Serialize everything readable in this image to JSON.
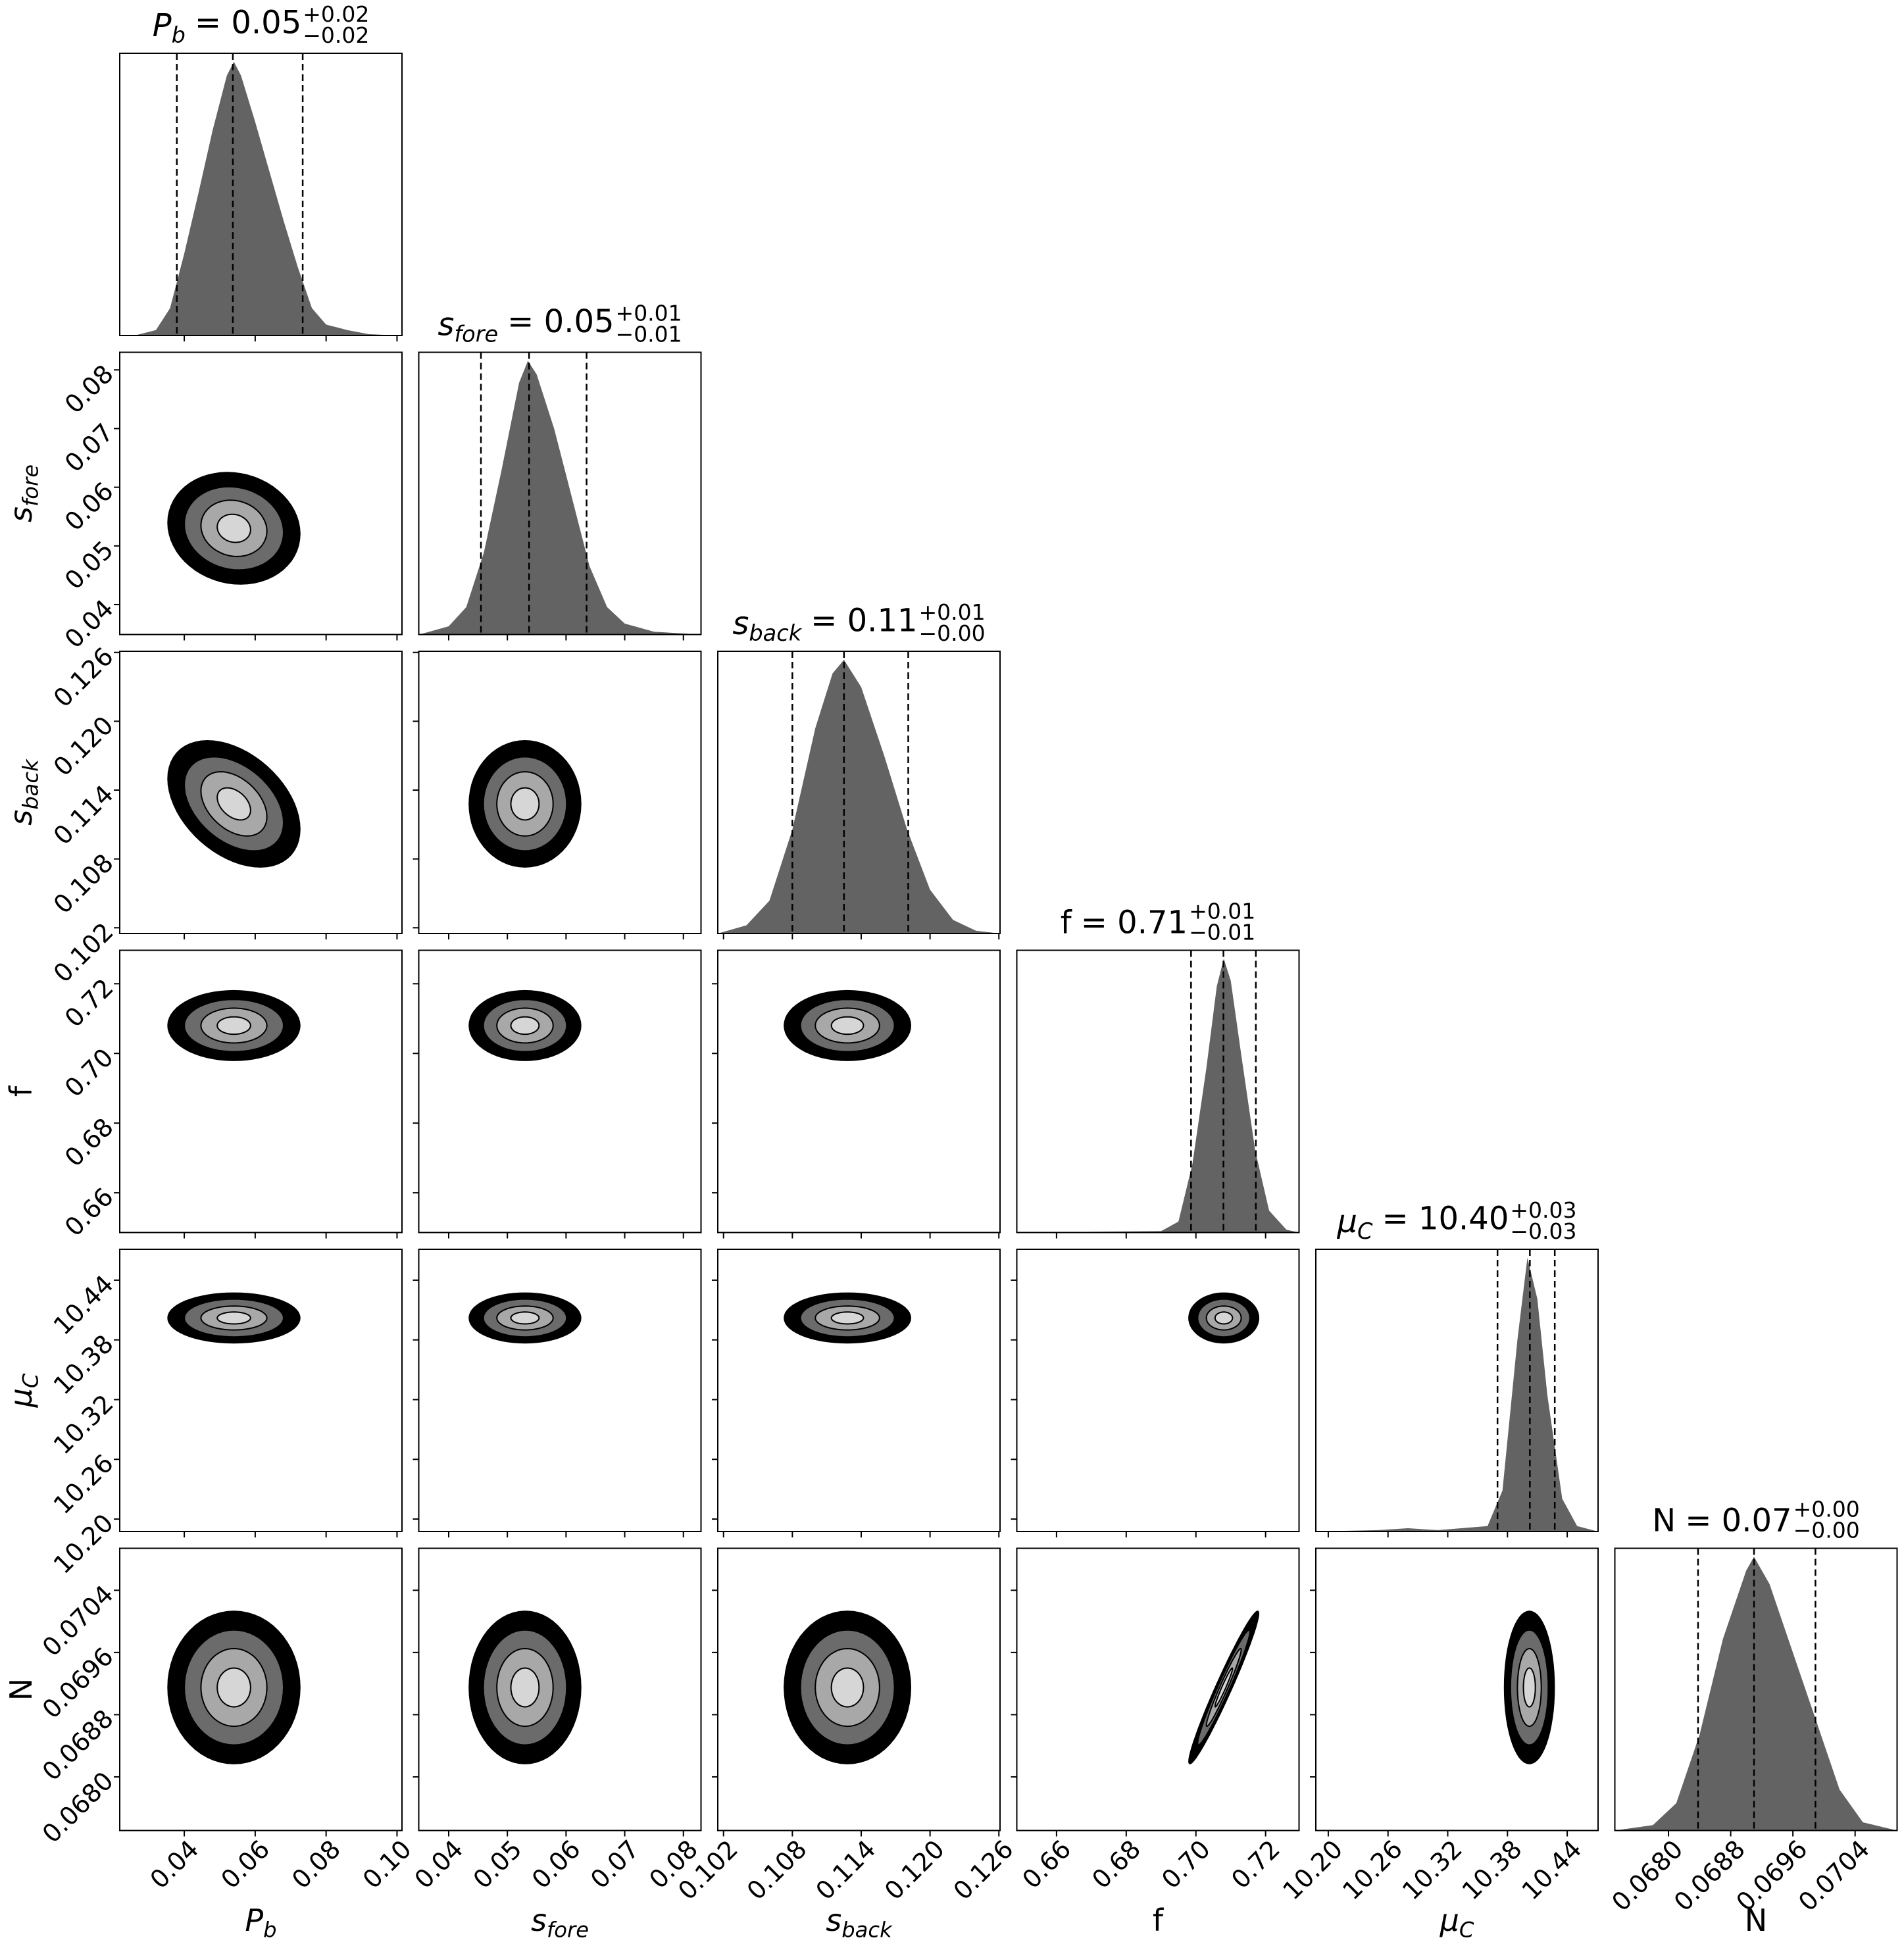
{
  "chart_data": {
    "type": "corner",
    "hist_color": "#636363",
    "level_colors": [
      "#d6d6d6",
      "#a8a8a8",
      "#6b6b6b",
      "#000000"
    ],
    "params": [
      {
        "symbol": "P",
        "sub": "b",
        "italic": true,
        "lim": [
          0.0218,
          0.1014
        ],
        "ticks": [
          0.04,
          0.06,
          0.08,
          {
            "value": 0.1,
            "label": "0.10"
          }
        ],
        "hist_x": [
          0.026,
          0.032,
          0.036,
          0.04,
          0.044,
          0.048,
          0.052,
          0.054,
          0.056,
          0.06,
          0.064,
          0.068,
          0.072,
          0.076,
          0.08,
          0.086,
          0.092,
          0.1
        ],
        "density": [
          0,
          0.02,
          0.1,
          0.3,
          0.52,
          0.75,
          0.95,
          1,
          0.95,
          0.78,
          0.6,
          0.42,
          0.25,
          0.1,
          0.04,
          0.02,
          0.005,
          0
        ],
        "quantiles": [
          0.0379,
          0.0537,
          0.0734
        ],
        "title": {
          "eq": "= 0.05",
          "plus": "+0.02",
          "minus": "−0.02"
        }
      },
      {
        "symbol": "s",
        "sub": "fore",
        "italic": true,
        "lim": [
          0.0349,
          0.083
        ],
        "ticks": [
          0.04,
          0.05,
          0.06,
          0.07,
          0.08
        ],
        "hist_x": [
          0.035,
          0.04,
          0.043,
          0.046,
          0.049,
          0.052,
          0.0535,
          0.055,
          0.058,
          0.061,
          0.064,
          0.067,
          0.07,
          0.075,
          0.083
        ],
        "density": [
          0,
          0.03,
          0.1,
          0.3,
          0.6,
          0.92,
          1,
          0.95,
          0.75,
          0.5,
          0.25,
          0.1,
          0.04,
          0.01,
          0
        ],
        "quantiles": [
          0.0455,
          0.0537,
          0.0635
        ],
        "title": {
          "eq": "= 0.05",
          "plus": "+0.01",
          "minus": "−0.01"
        }
      },
      {
        "symbol": "s",
        "sub": "back",
        "italic": true,
        "lim": [
          0.1015,
          0.1261
        ],
        "ticks": [
          0.102,
          0.108,
          0.114,
          {
            "value": 0.12,
            "label": "0.120"
          },
          0.126
        ],
        "hist_x": [
          0.1015,
          0.104,
          0.106,
          0.108,
          0.11,
          0.1115,
          0.1125,
          0.114,
          0.116,
          0.118,
          0.12,
          0.122,
          0.124,
          0.1261
        ],
        "density": [
          0,
          0.03,
          0.12,
          0.38,
          0.75,
          0.95,
          1,
          0.9,
          0.65,
          0.38,
          0.16,
          0.05,
          0.01,
          0
        ],
        "quantiles": [
          0.108,
          0.1125,
          0.1181
        ],
        "title": {
          "eq": "= 0.11",
          "plus": "+0.01",
          "minus": "−0.00"
        }
      },
      {
        "symbol": "f",
        "italic": false,
        "lim": [
          0.6486,
          0.7296
        ],
        "ticks": [
          0.66,
          0.68,
          {
            "value": 0.7,
            "label": "0.70"
          },
          0.72
        ],
        "hist_x": [
          0.6486,
          0.69,
          0.695,
          0.699,
          0.703,
          0.706,
          0.708,
          0.71,
          0.713,
          0.717,
          0.721,
          0.726,
          0.7296
        ],
        "density": [
          0,
          0.005,
          0.04,
          0.25,
          0.6,
          0.9,
          1,
          0.92,
          0.65,
          0.3,
          0.08,
          0.01,
          0
        ],
        "quantiles": [
          0.6986,
          0.7079,
          0.7172
        ],
        "title": {
          "eq": "= 0.71",
          "plus": "+0.01",
          "minus": "−0.01"
        }
      },
      {
        "symbol": "μ",
        "sub": "C",
        "italic": true,
        "lim": [
          10.1875,
          10.471
        ],
        "ticks": [
          {
            "value": 10.2,
            "label": "10.20"
          },
          10.26,
          10.32,
          10.38,
          10.44
        ],
        "hist_x": [
          10.1875,
          10.25,
          10.28,
          10.31,
          10.36,
          10.375,
          10.39,
          10.4,
          10.41,
          10.42,
          10.435,
          10.45,
          10.471
        ],
        "density": [
          0,
          0.005,
          0.012,
          0.005,
          0.02,
          0.15,
          0.7,
          1,
          0.85,
          0.5,
          0.12,
          0.02,
          0
        ],
        "quantiles": [
          10.37,
          10.4025,
          10.4275
        ],
        "title": {
          "eq": "= 10.40",
          "plus": "+0.03",
          "minus": "−0.03"
        }
      },
      {
        "symbol": "N",
        "italic": false,
        "lim": [
          0.06731,
          0.07094
        ],
        "ticks": [
          {
            "value": 0.068,
            "label": "0.0680"
          },
          0.0688,
          0.0696,
          0.0704
        ],
        "hist_x": [
          0.06731,
          0.0678,
          0.0681,
          0.0684,
          0.0687,
          0.069,
          0.0691,
          0.0693,
          0.0696,
          0.0699,
          0.0702,
          0.0705,
          0.07094
        ],
        "density": [
          0,
          0.02,
          0.1,
          0.35,
          0.7,
          0.95,
          1,
          0.9,
          0.65,
          0.4,
          0.15,
          0.03,
          0
        ],
        "quantiles": [
          0.06838,
          0.0691,
          0.06989
        ],
        "title": {
          "eq": "= 0.07",
          "plus": "+0.00",
          "minus": "−0.00"
        }
      }
    ],
    "panels": [
      [],
      [
        {
          "center": [
            0.054,
            0.053
          ],
          "rho": -0.1,
          "levels": [
            [
              0.0047,
              0.0024
            ],
            [
              0.0093,
              0.0048
            ],
            [
              0.014,
              0.0071
            ],
            [
              0.0186,
              0.0095
            ]
          ]
        }
      ],
      [
        {
          "center": [
            0.054,
            0.1128
          ],
          "rho": -0.4,
          "levels": [
            [
              0.0047,
              0.0014
            ],
            [
              0.0093,
              0.0028
            ],
            [
              0.014,
              0.0041
            ],
            [
              0.0186,
              0.0055
            ]
          ]
        },
        {
          "center": [
            0.053,
            0.1128
          ],
          "rho": 0,
          "levels": [
            [
              0.0024,
              0.0014
            ],
            [
              0.0048,
              0.0028
            ],
            [
              0.0071,
              0.0041
            ],
            [
              0.0095,
              0.0055
            ]
          ]
        }
      ],
      [
        {
          "center": [
            0.054,
            0.708
          ],
          "rho": 0,
          "levels": [
            [
              0.0047,
              0.0025
            ],
            [
              0.0093,
              0.005
            ],
            [
              0.014,
              0.0075
            ],
            [
              0.0186,
              0.01
            ]
          ]
        },
        {
          "center": [
            0.053,
            0.708
          ],
          "rho": 0,
          "levels": [
            [
              0.0024,
              0.0025
            ],
            [
              0.0048,
              0.005
            ],
            [
              0.0071,
              0.0075
            ],
            [
              0.0095,
              0.01
            ]
          ]
        },
        {
          "center": [
            0.1128,
            0.708
          ],
          "rho": 0,
          "levels": [
            [
              0.0014,
              0.0025
            ],
            [
              0.0028,
              0.005
            ],
            [
              0.0041,
              0.0075
            ],
            [
              0.0055,
              0.01
            ]
          ]
        }
      ],
      [
        {
          "center": [
            0.054,
            10.402
          ],
          "rho": 0,
          "levels": [
            [
              0.0047,
              0.006
            ],
            [
              0.0093,
              0.012
            ],
            [
              0.014,
              0.019
            ],
            [
              0.0186,
              0.025
            ]
          ]
        },
        {
          "center": [
            0.053,
            10.402
          ],
          "rho": 0,
          "levels": [
            [
              0.0024,
              0.006
            ],
            [
              0.0048,
              0.012
            ],
            [
              0.0071,
              0.019
            ],
            [
              0.0095,
              0.025
            ]
          ]
        },
        {
          "center": [
            0.1128,
            10.402
          ],
          "rho": 0,
          "levels": [
            [
              0.0014,
              0.006
            ],
            [
              0.0028,
              0.012
            ],
            [
              0.0041,
              0.019
            ],
            [
              0.0055,
              0.025
            ]
          ]
        },
        {
          "center": [
            0.708,
            10.402
          ],
          "rho": 0,
          "levels": [
            [
              0.0025,
              0.006
            ],
            [
              0.005,
              0.012
            ],
            [
              0.0075,
              0.019
            ],
            [
              0.01,
              0.025
            ]
          ]
        }
      ],
      [
        {
          "center": [
            0.054,
            0.06915
          ],
          "rho": 0,
          "levels": [
            [
              0.0047,
              0.00025
            ],
            [
              0.0093,
              0.0005
            ],
            [
              0.014,
              0.00074
            ],
            [
              0.0186,
              0.00098
            ]
          ]
        },
        {
          "center": [
            0.053,
            0.06915
          ],
          "rho": 0,
          "levels": [
            [
              0.0024,
              0.00025
            ],
            [
              0.0048,
              0.0005
            ],
            [
              0.0071,
              0.00074
            ],
            [
              0.0095,
              0.00098
            ]
          ]
        },
        {
          "center": [
            0.1128,
            0.06915
          ],
          "rho": 0,
          "levels": [
            [
              0.0014,
              0.00025
            ],
            [
              0.0028,
              0.0005
            ],
            [
              0.0041,
              0.00074
            ],
            [
              0.0055,
              0.00098
            ]
          ]
        },
        {
          "center": [
            0.708,
            0.06915
          ],
          "rho": 0.97,
          "levels": [
            [
              0.0025,
              0.00025
            ],
            [
              0.005,
              0.0005
            ],
            [
              0.0075,
              0.00074
            ],
            [
              0.01,
              0.00098
            ]
          ]
        },
        {
          "center": [
            10.402,
            0.06915
          ],
          "rho": 0,
          "levels": [
            [
              0.006,
              0.00025
            ],
            [
              0.012,
              0.0005
            ],
            [
              0.019,
              0.00074
            ],
            [
              0.025,
              0.00098
            ]
          ]
        }
      ]
    ]
  }
}
